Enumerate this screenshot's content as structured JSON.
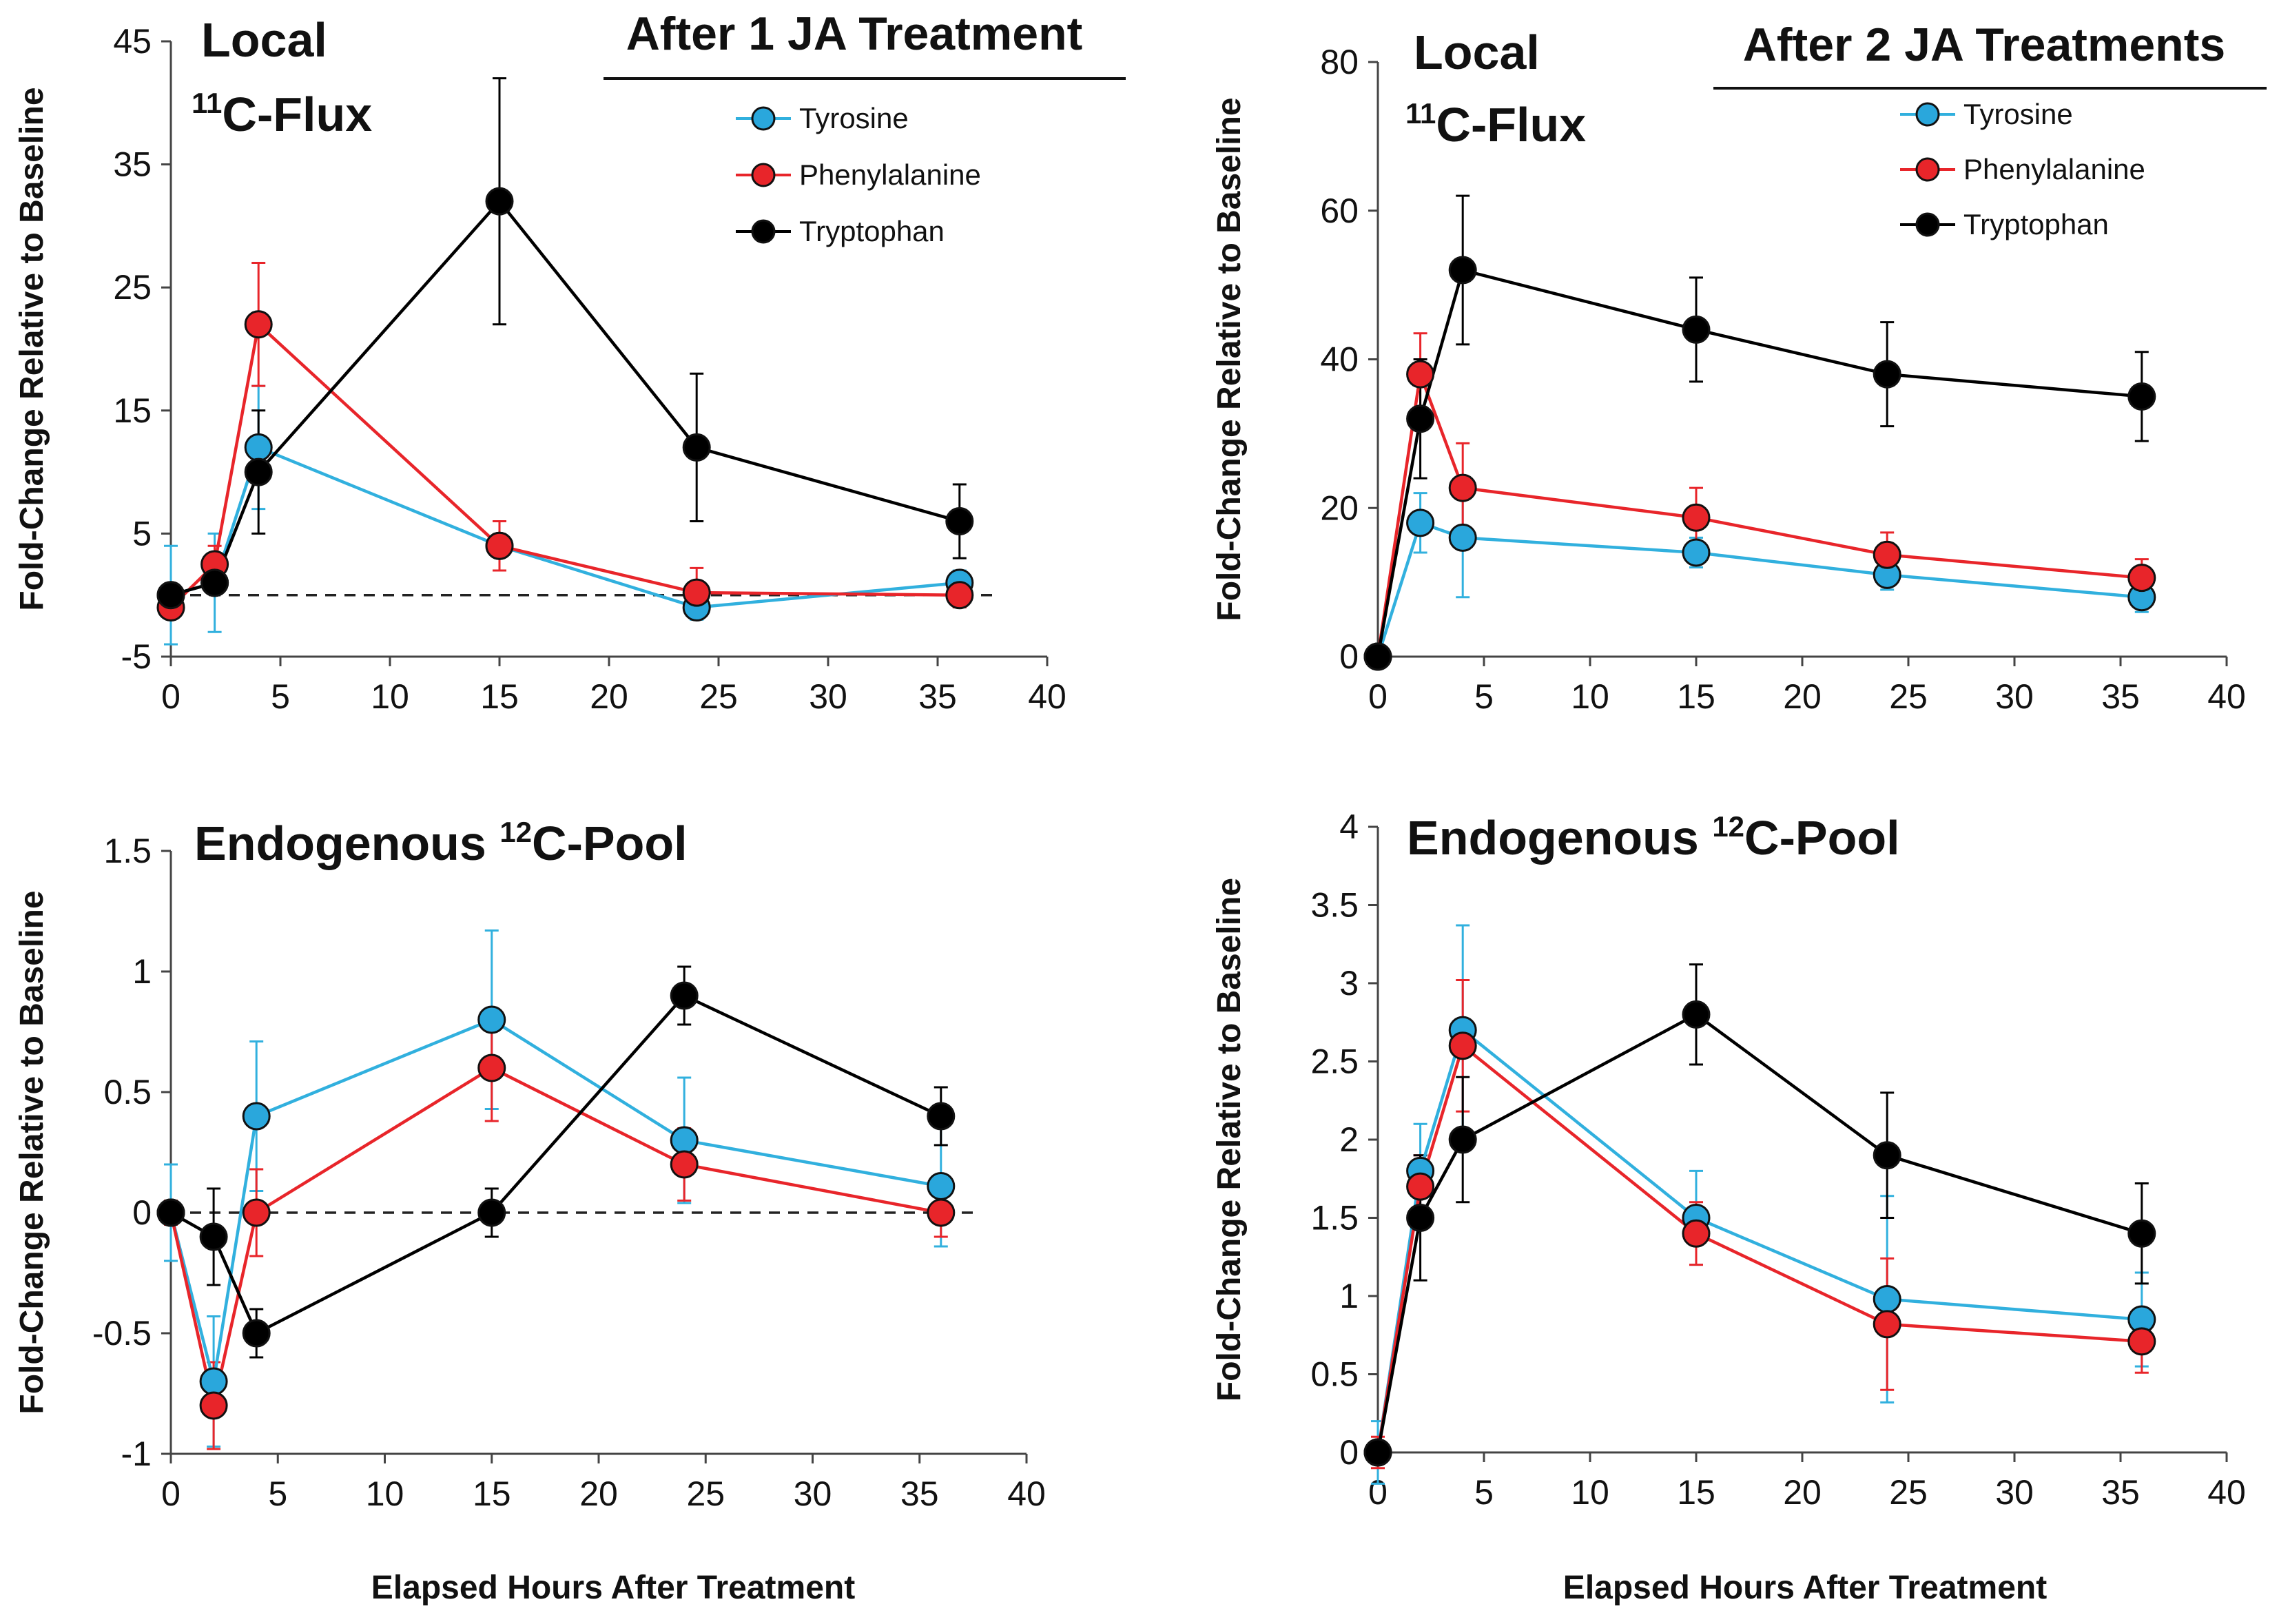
{
  "figure": {
    "x_axis_label": "Elapsed Hours After Treatment",
    "y_axis_label": "Fold-Change Relative to Baseline"
  },
  "legend": {
    "items": [
      "Tyrosine",
      "Phenylalanine",
      "Tryptophan"
    ]
  },
  "colors": {
    "Tyrosine_line": "#31b0de",
    "Tyrosine_fill": "#2aa7dc",
    "Phenylalanine_line": "#e8252a",
    "Phenylalanine_fill": "#e8252a",
    "Tryptophan_line": "#000000",
    "Tryptophan_fill": "#000000"
  },
  "chart_data": [
    {
      "id": "p0",
      "type": "line",
      "title_main": "Local",
      "title_sup": "11",
      "title_rest": "C-Flux",
      "treatment_title": "After 1 JA Treatment",
      "xlabel": "",
      "ylabel": "Fold-Change Relative to Baseline",
      "xlim": [
        0,
        40
      ],
      "ylim": [
        -5,
        45
      ],
      "xticks": [
        0,
        5,
        10,
        15,
        20,
        25,
        30,
        35,
        40
      ],
      "yticks": [
        -5,
        5,
        15,
        25,
        35,
        45
      ],
      "baseline": 0,
      "baseline_x": [
        0,
        37.5
      ],
      "legend_position": "top-right",
      "series": [
        {
          "name": "Tyrosine",
          "x": [
            0,
            2,
            4,
            15,
            24,
            36
          ],
          "y": [
            0,
            1,
            12,
            4,
            -1,
            1
          ],
          "err": [
            4,
            4,
            5,
            2,
            1,
            1
          ]
        },
        {
          "name": "Phenylalanine",
          "x": [
            0,
            2,
            4,
            15,
            24,
            36
          ],
          "y": [
            -1,
            2.5,
            22,
            4,
            0.2,
            0
          ],
          "err": [
            0.5,
            1.5,
            5,
            2,
            2,
            1
          ]
        },
        {
          "name": "Tryptophan",
          "x": [
            0,
            2,
            4,
            15,
            24,
            36
          ],
          "y": [
            0,
            1,
            10,
            32,
            12,
            6
          ],
          "err": [
            0.3,
            0.5,
            5,
            10,
            6,
            3
          ]
        }
      ]
    },
    {
      "id": "p1",
      "type": "line",
      "title_main": "Local",
      "title_sup": "11",
      "title_rest": "C-Flux",
      "treatment_title": "After 2 JA Treatments",
      "xlabel": "",
      "ylabel": "Fold-Change Relative to Baseline",
      "xlim": [
        0,
        40
      ],
      "ylim": [
        0,
        80
      ],
      "xticks": [
        0,
        5,
        10,
        15,
        20,
        25,
        30,
        35,
        40
      ],
      "yticks": [
        0,
        20,
        40,
        60,
        80
      ],
      "legend_position": "top-right",
      "series": [
        {
          "name": "Tyrosine",
          "x": [
            0,
            2,
            4,
            15,
            24,
            36
          ],
          "y": [
            0,
            18,
            16,
            14,
            11,
            8
          ],
          "err": [
            0,
            4,
            8,
            2,
            2,
            2
          ]
        },
        {
          "name": "Phenylalanine",
          "x": [
            0,
            2,
            4,
            15,
            24,
            36
          ],
          "y": [
            0,
            38,
            22.7,
            18.7,
            13.7,
            10.6
          ],
          "err": [
            0,
            5.5,
            6,
            4,
            3,
            2.5
          ]
        },
        {
          "name": "Tryptophan",
          "x": [
            0,
            2,
            4,
            15,
            24,
            36
          ],
          "y": [
            0,
            32,
            52,
            44,
            38,
            35
          ],
          "err": [
            0,
            8,
            10,
            7,
            7,
            6
          ]
        }
      ]
    },
    {
      "id": "p2",
      "type": "line",
      "title_main": "Endogenous ",
      "title_sup": "12",
      "title_rest": "C-Pool",
      "xlabel": "Elapsed Hours After Treatment",
      "ylabel": "Fold-Change Relative to Baseline",
      "xlim": [
        0,
        40
      ],
      "ylim": [
        -1,
        1.5
      ],
      "xticks": [
        0,
        5,
        10,
        15,
        20,
        25,
        30,
        35,
        40
      ],
      "yticks": [
        -1,
        -0.5,
        0,
        0.5,
        1,
        1.5
      ],
      "baseline": 0,
      "baseline_x": [
        0,
        37.5
      ],
      "series": [
        {
          "name": "Tyrosine",
          "x": [
            0,
            2,
            4,
            15,
            24,
            36
          ],
          "y": [
            0,
            -0.7,
            0.4,
            0.8,
            0.3,
            0.11
          ],
          "err": [
            0.2,
            0.27,
            0.31,
            0.37,
            0.26,
            0.25
          ]
        },
        {
          "name": "Phenylalanine",
          "x": [
            0,
            2,
            4,
            15,
            24,
            36
          ],
          "y": [
            0,
            -0.8,
            0,
            0.6,
            0.2,
            0
          ],
          "err": [
            0.05,
            0.18,
            0.18,
            0.22,
            0.15,
            0.1
          ]
        },
        {
          "name": "Tryptophan",
          "x": [
            0,
            2,
            4,
            15,
            24,
            36
          ],
          "y": [
            0,
            -0.1,
            -0.5,
            0,
            0.9,
            0.4
          ],
          "err": [
            0.02,
            0.2,
            0.1,
            0.1,
            0.12,
            0.12
          ]
        }
      ]
    },
    {
      "id": "p3",
      "type": "line",
      "title_main": "Endogenous ",
      "title_sup": "12",
      "title_rest": "C-Pool",
      "xlabel": "Elapsed Hours After Treatment",
      "ylabel": "Fold-Change Relative to Baseline",
      "xlim": [
        0,
        40
      ],
      "ylim": [
        0,
        4
      ],
      "xticks": [
        0,
        5,
        10,
        15,
        20,
        25,
        30,
        35,
        40
      ],
      "yticks": [
        0,
        0.5,
        1,
        1.5,
        2,
        2.5,
        3,
        3.5,
        4
      ],
      "series": [
        {
          "name": "Tyrosine",
          "x": [
            0,
            2,
            4,
            15,
            24,
            36
          ],
          "y": [
            0,
            1.8,
            2.7,
            1.5,
            0.98,
            0.85
          ],
          "err": [
            0.2,
            0.3,
            0.67,
            0.3,
            0.66,
            0.3
          ]
        },
        {
          "name": "Phenylalanine",
          "x": [
            0,
            2,
            4,
            15,
            24,
            36
          ],
          "y": [
            0,
            1.7,
            2.6,
            1.4,
            0.82,
            0.71
          ],
          "err": [
            0.1,
            0.2,
            0.42,
            0.2,
            0.42,
            0.2
          ]
        },
        {
          "name": "Tryptophan",
          "x": [
            0,
            2,
            4,
            15,
            24,
            36
          ],
          "y": [
            0,
            1.5,
            2,
            2.8,
            1.9,
            1.4
          ],
          "err": [
            0.05,
            0.4,
            0.4,
            0.32,
            0.4,
            0.32
          ]
        }
      ]
    }
  ]
}
